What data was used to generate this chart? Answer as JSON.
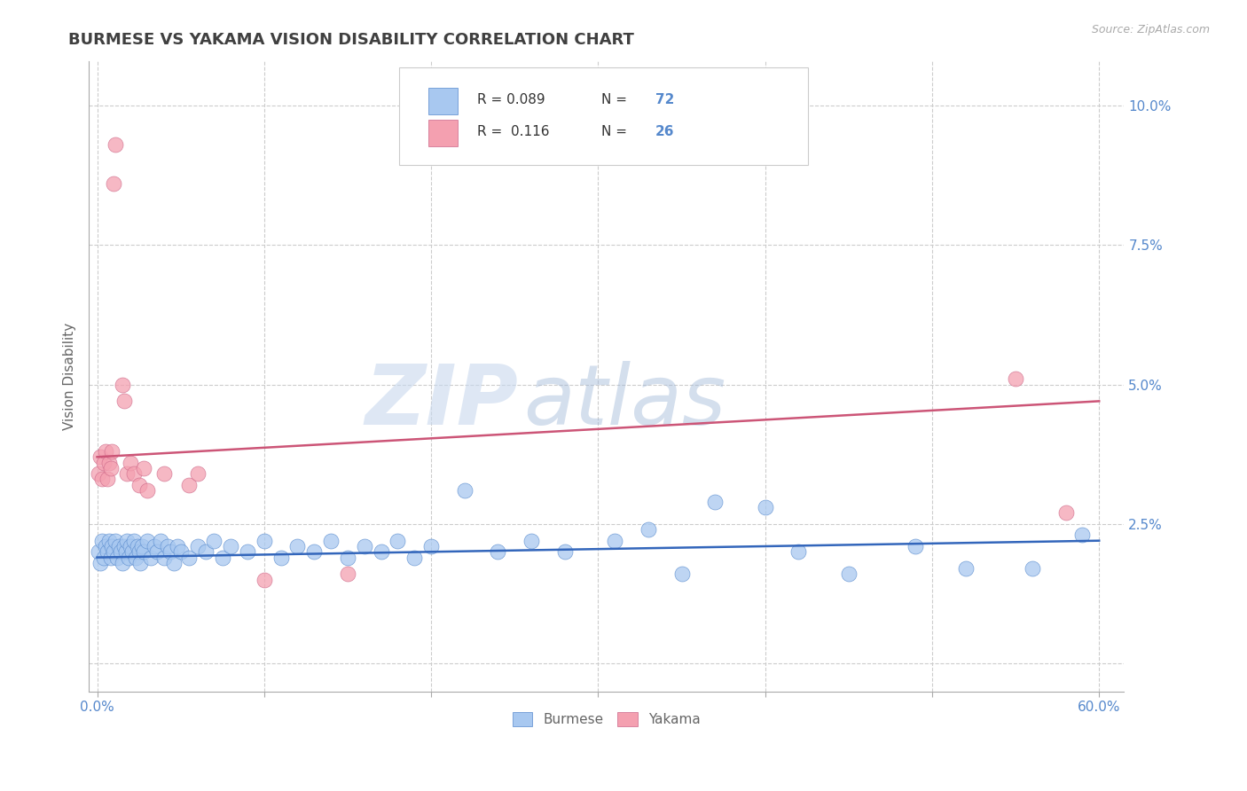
{
  "title": "BURMESE VS YAKAMA VISION DISABILITY CORRELATION CHART",
  "source": "Source: ZipAtlas.com",
  "ylabel": "Vision Disability",
  "xlim": [
    -0.005,
    0.615
  ],
  "ylim": [
    -0.005,
    0.108
  ],
  "xticks": [
    0.0,
    0.1,
    0.2,
    0.3,
    0.4,
    0.5,
    0.6
  ],
  "xticklabels": [
    "0.0%",
    "",
    "",
    "",
    "",
    "",
    "60.0%"
  ],
  "yticks": [
    0.0,
    0.025,
    0.05,
    0.075,
    0.1
  ],
  "yticklabels": [
    "",
    "2.5%",
    "5.0%",
    "7.5%",
    "10.0%"
  ],
  "burmese_color": "#a8c8f0",
  "yakama_color": "#f4a0b0",
  "burmese_edge_color": "#5588cc",
  "yakama_edge_color": "#cc6688",
  "burmese_line_color": "#3366bb",
  "yakama_line_color": "#cc5577",
  "title_color": "#404040",
  "tick_color": "#5588cc",
  "R_burmese": 0.089,
  "N_burmese": 72,
  "R_yakama": 0.116,
  "N_yakama": 26,
  "burmese_scatter": [
    [
      0.001,
      0.02
    ],
    [
      0.002,
      0.018
    ],
    [
      0.003,
      0.022
    ],
    [
      0.004,
      0.019
    ],
    [
      0.005,
      0.021
    ],
    [
      0.006,
      0.02
    ],
    [
      0.007,
      0.022
    ],
    [
      0.008,
      0.019
    ],
    [
      0.009,
      0.021
    ],
    [
      0.01,
      0.02
    ],
    [
      0.011,
      0.022
    ],
    [
      0.012,
      0.019
    ],
    [
      0.013,
      0.021
    ],
    [
      0.014,
      0.02
    ],
    [
      0.015,
      0.018
    ],
    [
      0.016,
      0.021
    ],
    [
      0.017,
      0.02
    ],
    [
      0.018,
      0.022
    ],
    [
      0.019,
      0.019
    ],
    [
      0.02,
      0.021
    ],
    [
      0.021,
      0.02
    ],
    [
      0.022,
      0.022
    ],
    [
      0.023,
      0.019
    ],
    [
      0.024,
      0.021
    ],
    [
      0.025,
      0.02
    ],
    [
      0.026,
      0.018
    ],
    [
      0.027,
      0.021
    ],
    [
      0.028,
      0.02
    ],
    [
      0.03,
      0.022
    ],
    [
      0.032,
      0.019
    ],
    [
      0.034,
      0.021
    ],
    [
      0.036,
      0.02
    ],
    [
      0.038,
      0.022
    ],
    [
      0.04,
      0.019
    ],
    [
      0.042,
      0.021
    ],
    [
      0.044,
      0.02
    ],
    [
      0.046,
      0.018
    ],
    [
      0.048,
      0.021
    ],
    [
      0.05,
      0.02
    ],
    [
      0.055,
      0.019
    ],
    [
      0.06,
      0.021
    ],
    [
      0.065,
      0.02
    ],
    [
      0.07,
      0.022
    ],
    [
      0.075,
      0.019
    ],
    [
      0.08,
      0.021
    ],
    [
      0.09,
      0.02
    ],
    [
      0.1,
      0.022
    ],
    [
      0.11,
      0.019
    ],
    [
      0.12,
      0.021
    ],
    [
      0.13,
      0.02
    ],
    [
      0.14,
      0.022
    ],
    [
      0.15,
      0.019
    ],
    [
      0.16,
      0.021
    ],
    [
      0.17,
      0.02
    ],
    [
      0.18,
      0.022
    ],
    [
      0.19,
      0.019
    ],
    [
      0.2,
      0.021
    ],
    [
      0.22,
      0.031
    ],
    [
      0.24,
      0.02
    ],
    [
      0.26,
      0.022
    ],
    [
      0.28,
      0.02
    ],
    [
      0.31,
      0.022
    ],
    [
      0.33,
      0.024
    ],
    [
      0.35,
      0.016
    ],
    [
      0.37,
      0.029
    ],
    [
      0.4,
      0.028
    ],
    [
      0.42,
      0.02
    ],
    [
      0.45,
      0.016
    ],
    [
      0.49,
      0.021
    ],
    [
      0.52,
      0.017
    ],
    [
      0.56,
      0.017
    ],
    [
      0.59,
      0.023
    ]
  ],
  "yakama_scatter": [
    [
      0.001,
      0.034
    ],
    [
      0.002,
      0.037
    ],
    [
      0.003,
      0.033
    ],
    [
      0.004,
      0.036
    ],
    [
      0.005,
      0.038
    ],
    [
      0.006,
      0.033
    ],
    [
      0.007,
      0.036
    ],
    [
      0.008,
      0.035
    ],
    [
      0.009,
      0.038
    ],
    [
      0.01,
      0.086
    ],
    [
      0.011,
      0.093
    ],
    [
      0.015,
      0.05
    ],
    [
      0.016,
      0.047
    ],
    [
      0.018,
      0.034
    ],
    [
      0.02,
      0.036
    ],
    [
      0.022,
      0.034
    ],
    [
      0.025,
      0.032
    ],
    [
      0.028,
      0.035
    ],
    [
      0.03,
      0.031
    ],
    [
      0.04,
      0.034
    ],
    [
      0.055,
      0.032
    ],
    [
      0.06,
      0.034
    ],
    [
      0.1,
      0.015
    ],
    [
      0.15,
      0.016
    ],
    [
      0.55,
      0.051
    ],
    [
      0.58,
      0.027
    ]
  ],
  "watermark_zip": "ZIP",
  "watermark_atlas": "atlas",
  "background_color": "#ffffff",
  "grid_color": "#cccccc"
}
